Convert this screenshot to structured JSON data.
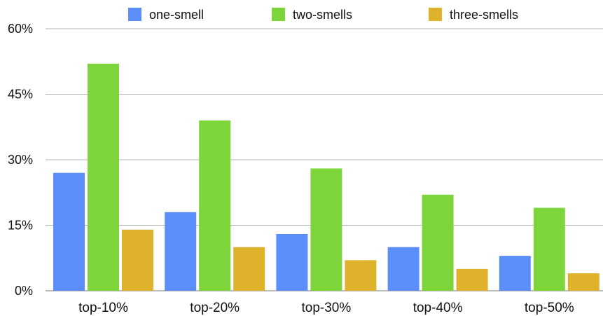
{
  "chart_data": {
    "type": "bar",
    "categories": [
      "top-10%",
      "top-20%",
      "top-30%",
      "top-40%",
      "top-50%"
    ],
    "series": [
      {
        "name": "one-smell",
        "color": "#5b8ef8",
        "values": [
          27,
          18,
          13,
          10,
          8
        ]
      },
      {
        "name": "two-smells",
        "color": "#7ed43b",
        "values": [
          52,
          39,
          28,
          22,
          19
        ]
      },
      {
        "name": "three-smells",
        "color": "#dfb22b",
        "values": [
          14,
          10,
          7,
          5,
          4
        ]
      }
    ],
    "yticks": [
      0,
      15,
      30,
      45,
      60
    ],
    "ytick_labels": [
      "0%",
      "15%",
      "30%",
      "45%",
      "60%"
    ],
    "ylim": [
      0,
      60
    ],
    "grid": true,
    "legend_position": "top"
  }
}
